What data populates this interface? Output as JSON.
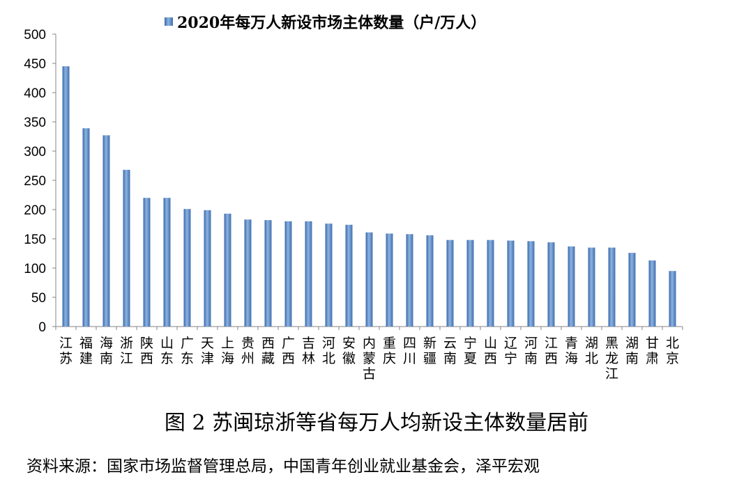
{
  "chart_data": {
    "type": "bar",
    "title": "2020年每万人新设市场主体数量（户/万人）",
    "legend_position": "top",
    "legend_marker_color": "#4f81bd",
    "bar_color": "#4f81bd",
    "ylim": [
      0,
      500
    ],
    "yticks": [
      0,
      50,
      100,
      150,
      200,
      250,
      300,
      350,
      400,
      450,
      500
    ],
    "grid": false,
    "categories": [
      "江苏",
      "福建",
      "海南",
      "浙江",
      "陕西",
      "山东",
      "广东",
      "天津",
      "上海",
      "贵州",
      "西藏",
      "广西",
      "吉林",
      "河北",
      "安徽",
      "内蒙古",
      "重庆",
      "四川",
      "新疆",
      "云南",
      "宁夏",
      "山西",
      "辽宁",
      "河南",
      "江西",
      "青海",
      "湖北",
      "黑龙江",
      "湖南",
      "甘肃",
      "北京"
    ],
    "values": [
      445,
      339,
      327,
      268,
      220,
      220,
      201,
      199,
      193,
      183,
      182,
      180,
      180,
      176,
      174,
      161,
      159,
      158,
      156,
      148,
      148,
      148,
      147,
      146,
      144,
      137,
      135,
      135,
      126,
      113,
      95
    ]
  },
  "caption": "图 2  苏闽琼浙等省每万人均新设主体数量居前",
  "source": "资料来源：国家市场监督管理总局，中国青年创业就业基金会，泽平宏观"
}
